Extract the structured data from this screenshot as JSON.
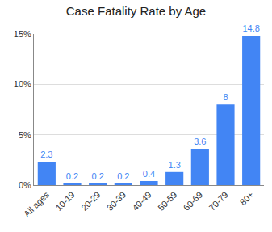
{
  "chart_data": {
    "type": "bar",
    "title": "Case Fatality Rate by Age",
    "categories": [
      "All ages",
      "10-19",
      "20-29",
      "30-39",
      "40-49",
      "50-59",
      "60-69",
      "70-79",
      "80+"
    ],
    "values": [
      2.3,
      0.2,
      0.2,
      0.2,
      0.4,
      1.3,
      3.6,
      8,
      14.8
    ],
    "color": "#4285f4",
    "ylim": [
      0,
      15
    ],
    "yticks": [
      {
        "value": 0,
        "label": "0%"
      },
      {
        "value": 5,
        "label": "5%"
      },
      {
        "value": 10,
        "label": "10%"
      },
      {
        "value": 15,
        "label": "15%"
      }
    ],
    "grid": true,
    "data_labels": true
  }
}
